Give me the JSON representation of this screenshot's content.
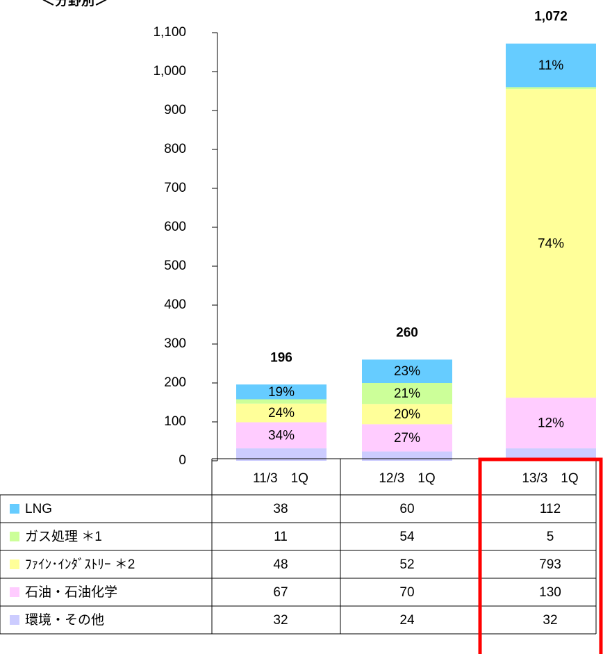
{
  "chart_data": {
    "type": "stacked_bar",
    "title": "＜分野別＞",
    "categories": [
      "11/3　1Q",
      "12/3　1Q",
      "13/3　1Q"
    ],
    "series": [
      {
        "name": "環境・その他",
        "color": "#ccccff",
        "values": [
          32,
          24,
          32
        ],
        "percent_labels": [
          null,
          null,
          null
        ]
      },
      {
        "name": "石油・石油化学",
        "color": "#ffccff",
        "values": [
          67,
          70,
          130
        ],
        "percent_labels": [
          "34%",
          "27%",
          "12%"
        ]
      },
      {
        "name": "ﾌｧｲﾝ･ｲﾝﾀﾞｽﾄﾘｰ ＊2",
        "color": "#ffff99",
        "values": [
          48,
          52,
          793
        ],
        "percent_labels": [
          "24%",
          "20%",
          "74%"
        ]
      },
      {
        "name": "ガス処理 ＊1",
        "color": "#ccff99",
        "values": [
          11,
          54,
          5
        ],
        "percent_labels": [
          null,
          "21%",
          null
        ]
      },
      {
        "name": "LNG",
        "color": "#66ccff",
        "values": [
          38,
          60,
          112
        ],
        "percent_labels": [
          "19%",
          "23%",
          "11%"
        ]
      }
    ],
    "total_labels": [
      "196",
      "260",
      "1,072"
    ],
    "ylim": [
      0,
      1100
    ],
    "yticks": [
      0,
      100,
      200,
      300,
      400,
      500,
      600,
      700,
      800,
      900,
      {
        "value": 1000,
        "label": "1,000"
      },
      {
        "value": 1100,
        "label": "1,100"
      }
    ]
  }
}
